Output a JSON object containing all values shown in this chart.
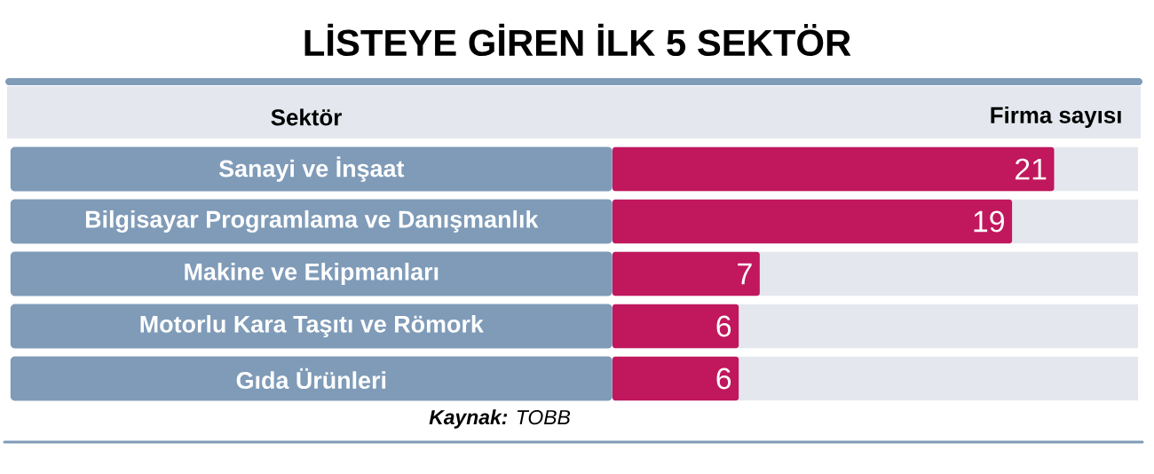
{
  "chart_data": {
    "type": "bar",
    "orientation": "horizontal",
    "title": "LİSTEYE GİREN İLK 5 SEKTÖR",
    "categories": [
      "Sanayi ve İnşaat",
      "Bilgisayar Programlama ve Danışmanlık",
      "Makine ve Ekipmanları",
      "Motorlu Kara Taşıtı ve Römork",
      "Gıda Ürünleri"
    ],
    "values": [
      21,
      19,
      7,
      6,
      6
    ],
    "color": "#c0175d",
    "data_labels": true,
    "annotations": [
      "Sektör",
      "Firma sayısı",
      "**Kaynak:** TOBB"
    ]
  }
}
